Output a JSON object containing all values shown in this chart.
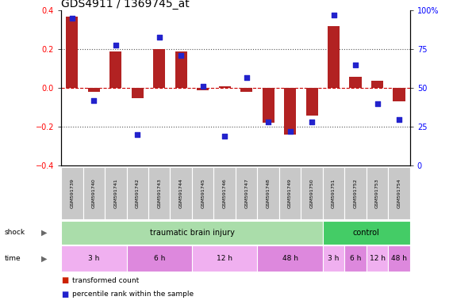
{
  "title": "GDS4911 / 1369745_at",
  "samples": [
    "GSM591739",
    "GSM591740",
    "GSM591741",
    "GSM591742",
    "GSM591743",
    "GSM591744",
    "GSM591745",
    "GSM591746",
    "GSM591747",
    "GSM591748",
    "GSM591749",
    "GSM591750",
    "GSM591751",
    "GSM591752",
    "GSM591753",
    "GSM591754"
  ],
  "transformed_count": [
    0.37,
    -0.02,
    0.19,
    -0.05,
    0.2,
    0.19,
    -0.01,
    0.01,
    -0.02,
    -0.18,
    -0.24,
    -0.14,
    0.32,
    0.06,
    0.04,
    -0.07
  ],
  "percentile_rank": [
    95,
    42,
    78,
    20,
    83,
    71,
    51,
    19,
    57,
    28,
    22,
    28,
    97,
    65,
    40,
    30
  ],
  "ylim_left": [
    -0.4,
    0.4
  ],
  "ylim_right": [
    0,
    100
  ],
  "yticks_left": [
    -0.4,
    -0.2,
    0.0,
    0.2,
    0.4
  ],
  "yticks_right": [
    0,
    25,
    50,
    75,
    100
  ],
  "bar_color": "#b22222",
  "dot_color": "#2222cc",
  "hline_color": "#cc0000",
  "gridline_color": "#555555",
  "shock_groups": [
    {
      "label": "traumatic brain injury",
      "start": 0,
      "end": 12,
      "color": "#aaddaa"
    },
    {
      "label": "control",
      "start": 12,
      "end": 16,
      "color": "#44cc66"
    }
  ],
  "time_groups": [
    {
      "label": "3 h",
      "start": 0,
      "end": 3,
      "color": "#f0b0f0"
    },
    {
      "label": "6 h",
      "start": 3,
      "end": 6,
      "color": "#dd88dd"
    },
    {
      "label": "12 h",
      "start": 6,
      "end": 9,
      "color": "#f0b0f0"
    },
    {
      "label": "48 h",
      "start": 9,
      "end": 12,
      "color": "#dd88dd"
    },
    {
      "label": "3 h",
      "start": 12,
      "end": 13,
      "color": "#f0b0f0"
    },
    {
      "label": "6 h",
      "start": 13,
      "end": 14,
      "color": "#dd88dd"
    },
    {
      "label": "12 h",
      "start": 14,
      "end": 15,
      "color": "#f0b0f0"
    },
    {
      "label": "48 h",
      "start": 15,
      "end": 16,
      "color": "#dd88dd"
    }
  ],
  "legend_bar_color": "#cc2200",
  "legend_dot_color": "#2222cc",
  "background_color": "#ffffff",
  "tick_bg_color": "#c8c8c8"
}
